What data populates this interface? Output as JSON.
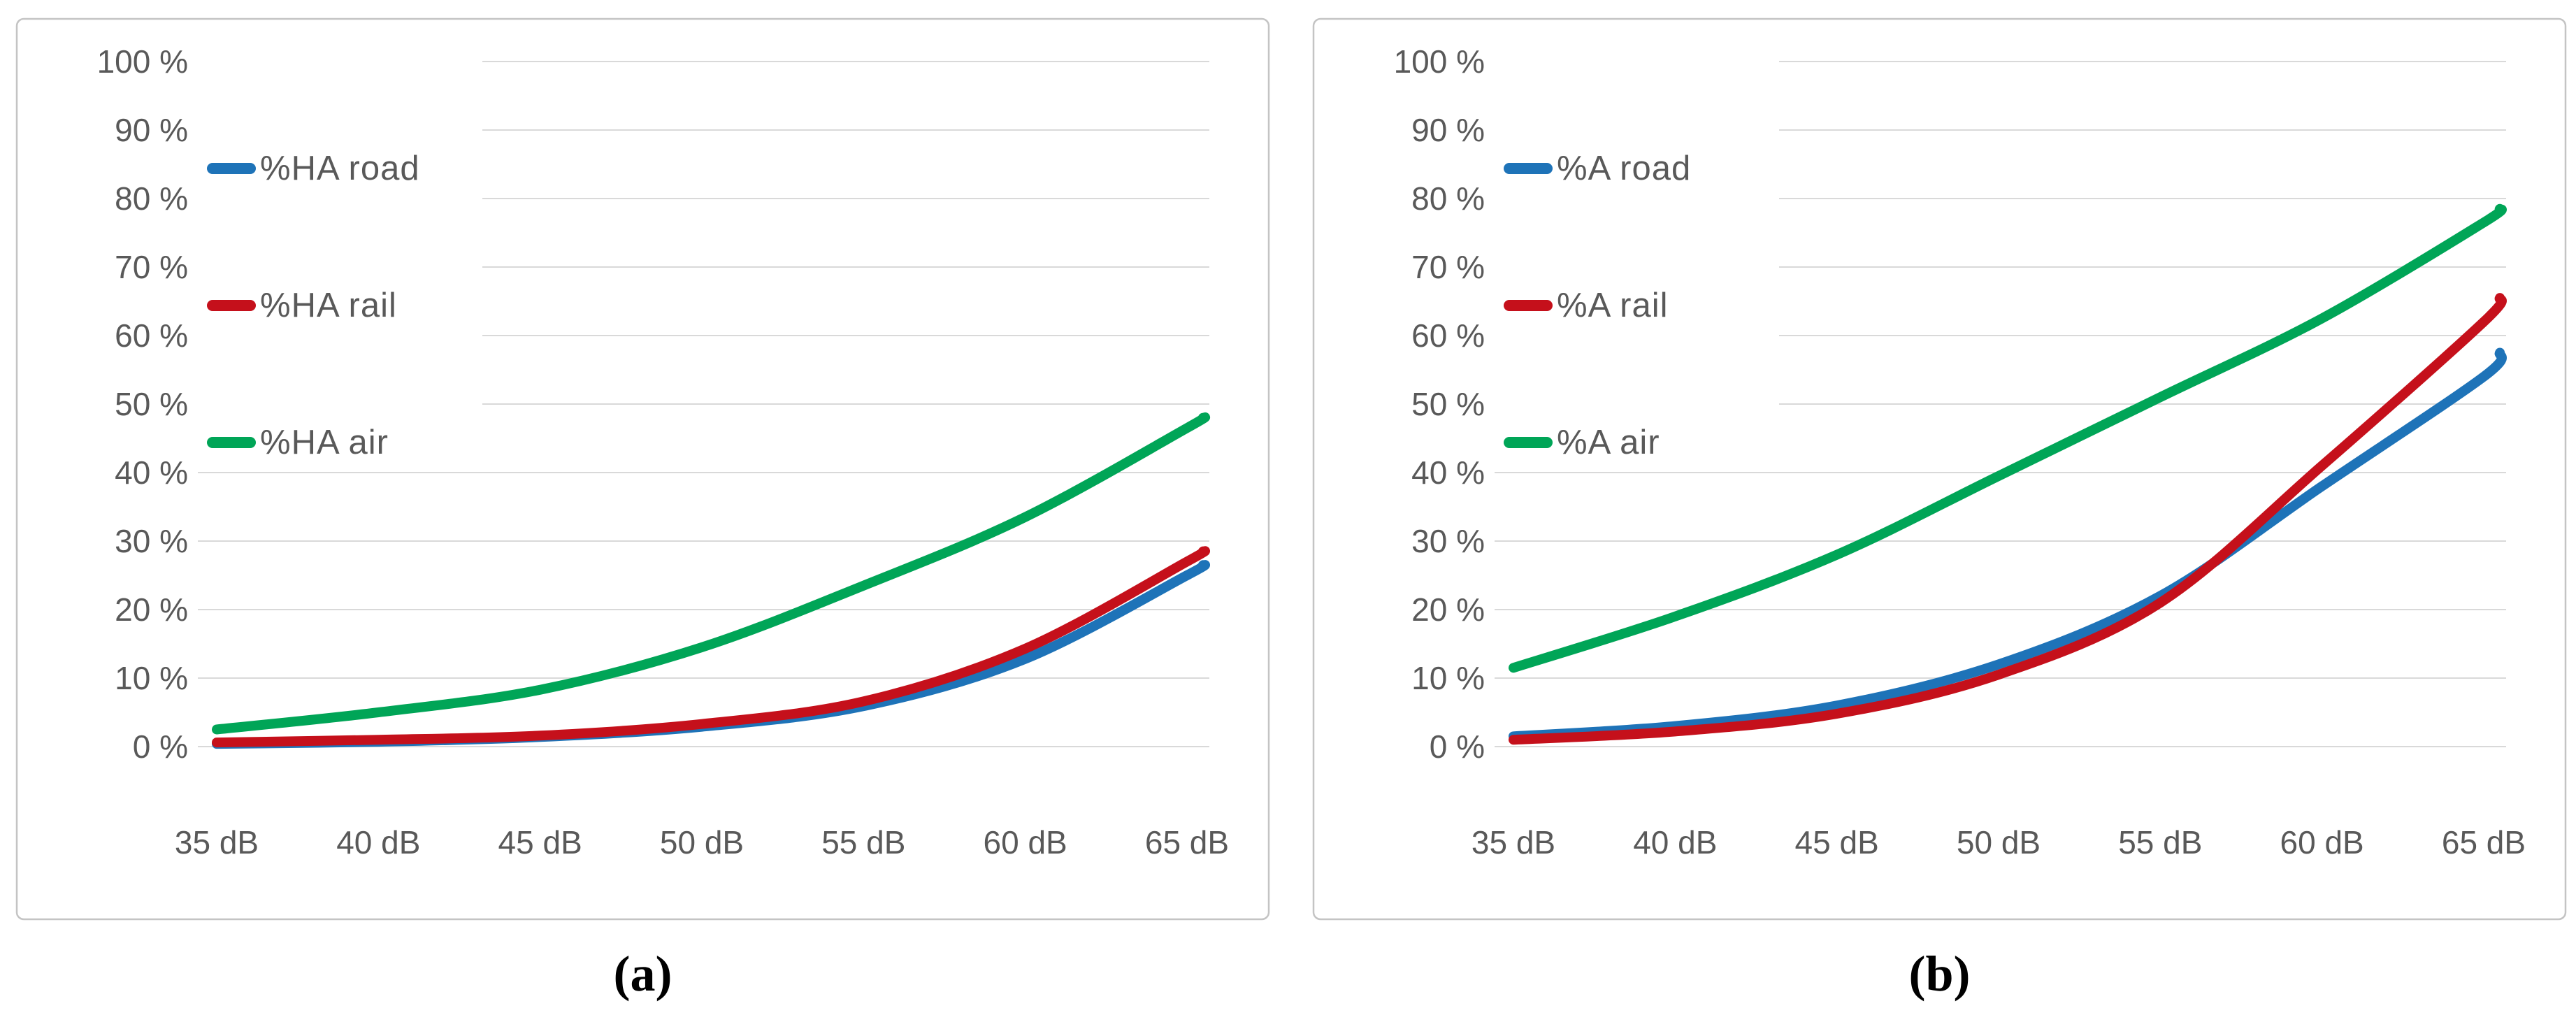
{
  "page": {
    "background": "#ffffff"
  },
  "colors": {
    "road": "#1E73B8",
    "rail": "#C5101B",
    "air": "#00A557",
    "axis_text": "#595959",
    "gridline": "#D9D9D9",
    "panel_border": "#C4C4C4",
    "caption_text": "#000000"
  },
  "panels": [
    {
      "caption": "(a)",
      "legend": [
        {
          "label": "%HA road",
          "series": "road"
        },
        {
          "label": "%HA rail",
          "series": "rail"
        },
        {
          "label": "%HA air",
          "series": "air"
        }
      ]
    },
    {
      "caption": "(b)",
      "legend": [
        {
          "label": "%A road",
          "series": "road"
        },
        {
          "label": "%A rail",
          "series": "rail"
        },
        {
          "label": "%A air",
          "series": "air"
        }
      ]
    }
  ],
  "chart_data": [
    {
      "type": "line",
      "title": "",
      "xlabel": "dB",
      "ylabel": "%",
      "xlim": [
        34.4,
        65.7
      ],
      "ylim": [
        0,
        100
      ],
      "grid": "horizontal",
      "legend_position": "inside-top-left",
      "x": [
        35,
        40,
        45,
        50,
        55,
        60,
        65,
        65.5
      ],
      "x_tick_values": [
        35,
        40,
        45,
        50,
        55,
        60,
        65
      ],
      "x_tick_labels": [
        "35 dB",
        "40 dB",
        "45 dB",
        "50 dB",
        "55 dB",
        "60 dB",
        "65 dB"
      ],
      "y_tick_values": [
        0,
        10,
        20,
        30,
        40,
        50,
        60,
        70,
        80,
        90,
        100
      ],
      "y_tick_labels": [
        "0 %",
        "10 %",
        "20 %",
        "30 %",
        "40 %",
        "50 %",
        "60 %",
        "70 %",
        "80 %",
        "90 %",
        "100 %"
      ],
      "series": [
        {
          "name": "%HA road",
          "key": "road",
          "values": [
            0.4,
            0.7,
            1.4,
            2.9,
            5.9,
            12.8,
            25.0,
            26.5
          ]
        },
        {
          "name": "%HA rail",
          "key": "rail",
          "values": [
            0.6,
            1.0,
            1.6,
            3.3,
            6.6,
            14.3,
            27.0,
            28.5
          ]
        },
        {
          "name": "%HA air",
          "key": "air",
          "values": [
            2.5,
            5.0,
            8.3,
            14.5,
            23.5,
            33.5,
            46.5,
            48.0
          ]
        }
      ]
    },
    {
      "type": "line",
      "title": "",
      "xlabel": "dB",
      "ylabel": "%",
      "xlim": [
        34.4,
        65.7
      ],
      "ylim": [
        0,
        100
      ],
      "grid": "horizontal",
      "legend_position": "inside-top-left",
      "x": [
        35,
        40,
        45,
        50,
        55,
        60,
        65,
        65.5
      ],
      "x_tick_values": [
        35,
        40,
        45,
        50,
        55,
        60,
        65
      ],
      "x_tick_labels": [
        "35 dB",
        "40 dB",
        "45 dB",
        "50 dB",
        "55 dB",
        "60 dB",
        "65 dB"
      ],
      "y_tick_values": [
        0,
        10,
        20,
        30,
        40,
        50,
        60,
        70,
        80,
        90,
        100
      ],
      "y_tick_labels": [
        "0 %",
        "10 %",
        "20 %",
        "30 %",
        "40 %",
        "50 %",
        "60 %",
        "70 %",
        "80 %",
        "90 %",
        "100 %"
      ],
      "series": [
        {
          "name": "%A road",
          "key": "road",
          "values": [
            1.5,
            3.0,
            6.0,
            12.0,
            22.0,
            38.0,
            54.0,
            57.5
          ]
        },
        {
          "name": "%A rail",
          "key": "rail",
          "values": [
            1.0,
            2.2,
            4.8,
            10.5,
            21.0,
            41.0,
            62.0,
            65.5
          ]
        },
        {
          "name": "%A air",
          "key": "air",
          "values": [
            11.5,
            19.0,
            28.0,
            39.5,
            51.0,
            62.5,
            76.5,
            78.5
          ]
        }
      ]
    }
  ]
}
